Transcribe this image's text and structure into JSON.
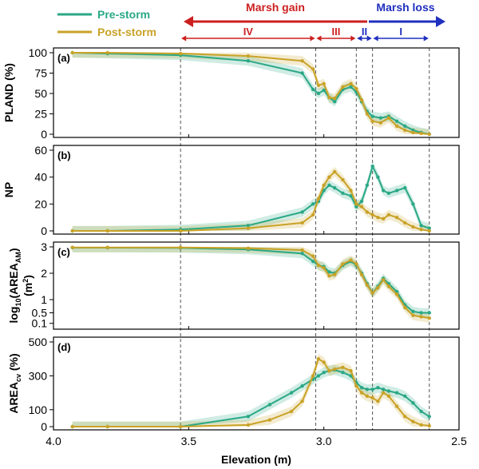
{
  "legend": {
    "items": [
      {
        "label": "Pre-storm",
        "color": "#2aa886"
      },
      {
        "label": "Post-storm",
        "color": "#c9a227"
      }
    ]
  },
  "annotations": {
    "gain_label": "Marsh gain",
    "loss_label": "Marsh loss",
    "gain_color": "#cc1f1f",
    "loss_color": "#1f2fbf",
    "zones": [
      "IV",
      "III",
      "II",
      "I"
    ],
    "zone_boundaries": [
      3.53,
      3.03,
      2.88,
      2.82,
      2.61
    ]
  },
  "xaxis": {
    "label": "Elevation (m)",
    "range": [
      4.0,
      2.5
    ],
    "ticks": [
      "4.0",
      "3.5",
      "3.0",
      "2.5"
    ],
    "tick_values": [
      4.0,
      3.5,
      3.0,
      2.5
    ],
    "direction": "reversed"
  },
  "chart_data": [
    {
      "type": "line",
      "panel": "(a)",
      "ylabel": "PLAND (%)",
      "ylim": [
        0,
        100
      ],
      "yticks": [
        "0",
        "25",
        "50",
        "75",
        "100"
      ],
      "ytick_values": [
        0,
        25,
        50,
        75,
        100
      ],
      "x": [
        3.93,
        3.8,
        3.53,
        3.28,
        3.08,
        3.04,
        3.02,
        3.0,
        2.98,
        2.96,
        2.93,
        2.9,
        2.88,
        2.86,
        2.84,
        2.82,
        2.79,
        2.76,
        2.73,
        2.7,
        2.67,
        2.64,
        2.61
      ],
      "series": [
        {
          "name": "Pre-storm",
          "values": [
            100,
            99,
            97,
            90,
            75,
            55,
            50,
            54,
            45,
            40,
            55,
            58,
            52,
            40,
            28,
            22,
            20,
            22,
            16,
            10,
            5,
            2,
            0
          ]
        },
        {
          "name": "Post-storm",
          "values": [
            100,
            100,
            99,
            96,
            90,
            80,
            60,
            62,
            45,
            44,
            58,
            62,
            56,
            42,
            25,
            16,
            14,
            20,
            10,
            5,
            2,
            1,
            0
          ]
        }
      ]
    },
    {
      "type": "line",
      "panel": "(b)",
      "ylabel": "NP",
      "ylim": [
        0,
        60
      ],
      "yticks": [
        "0",
        "20",
        "40",
        "60"
      ],
      "ytick_values": [
        0,
        20,
        40,
        60
      ],
      "x": [
        3.93,
        3.8,
        3.53,
        3.28,
        3.08,
        3.04,
        3.02,
        3.0,
        2.98,
        2.96,
        2.93,
        2.9,
        2.88,
        2.86,
        2.84,
        2.82,
        2.8,
        2.78,
        2.76,
        2.73,
        2.7,
        2.67,
        2.64,
        2.61
      ],
      "series": [
        {
          "name": "Pre-storm",
          "values": [
            0,
            0,
            1,
            4,
            14,
            20,
            22,
            30,
            34,
            32,
            28,
            26,
            18,
            22,
            34,
            48,
            40,
            30,
            28,
            30,
            32,
            20,
            4,
            2
          ]
        },
        {
          "name": "Post-storm",
          "values": [
            0,
            0,
            0,
            2,
            6,
            12,
            24,
            34,
            40,
            44,
            38,
            30,
            20,
            18,
            14,
            12,
            10,
            9,
            12,
            10,
            6,
            3,
            1,
            0
          ]
        }
      ]
    },
    {
      "type": "line",
      "panel": "(c)",
      "ylabel": "log10(AREA_AM) (m2)",
      "ylim": [
        0,
        3
      ],
      "yticks": [
        "0.1",
        "0.5",
        "1",
        "2",
        "3"
      ],
      "ytick_values": [
        0.1,
        0.5,
        1,
        2,
        3
      ],
      "x": [
        3.93,
        3.8,
        3.53,
        3.28,
        3.08,
        3.04,
        3.02,
        3.0,
        2.98,
        2.96,
        2.93,
        2.9,
        2.88,
        2.86,
        2.84,
        2.82,
        2.8,
        2.78,
        2.76,
        2.73,
        2.7,
        2.67,
        2.64,
        2.61
      ],
      "series": [
        {
          "name": "Pre-storm",
          "values": [
            2.97,
            2.97,
            2.96,
            2.9,
            2.75,
            2.45,
            2.3,
            2.25,
            2.05,
            2.0,
            2.3,
            2.45,
            2.3,
            2.0,
            1.6,
            1.25,
            1.5,
            1.8,
            1.6,
            1.3,
            0.8,
            0.55,
            0.5,
            0.5
          ]
        },
        {
          "name": "Post-storm",
          "values": [
            2.98,
            2.98,
            2.98,
            2.95,
            2.88,
            2.65,
            2.3,
            2.2,
            1.9,
            1.95,
            2.35,
            2.5,
            2.35,
            1.95,
            1.55,
            1.25,
            1.45,
            1.75,
            1.5,
            1.2,
            0.7,
            0.4,
            0.35,
            0.3
          ]
        }
      ]
    },
    {
      "type": "line",
      "panel": "(d)",
      "ylabel": "AREA_cv (%)",
      "ylim": [
        0,
        500
      ],
      "yticks": [
        "0",
        "100",
        "300",
        "500"
      ],
      "ytick_values": [
        0,
        100,
        300,
        500
      ],
      "x": [
        3.93,
        3.8,
        3.53,
        3.28,
        3.2,
        3.12,
        3.08,
        3.04,
        3.02,
        3.0,
        2.98,
        2.96,
        2.93,
        2.9,
        2.88,
        2.86,
        2.84,
        2.82,
        2.8,
        2.78,
        2.76,
        2.73,
        2.7,
        2.67,
        2.64,
        2.61
      ],
      "series": [
        {
          "name": "Pre-storm",
          "values": [
            0,
            0,
            0,
            60,
            130,
            200,
            240,
            280,
            300,
            320,
            330,
            335,
            320,
            300,
            260,
            230,
            220,
            220,
            230,
            220,
            210,
            200,
            180,
            140,
            90,
            60
          ]
        },
        {
          "name": "Post-storm",
          "values": [
            0,
            0,
            0,
            10,
            40,
            90,
            150,
            300,
            400,
            380,
            330,
            340,
            350,
            330,
            240,
            200,
            180,
            170,
            150,
            200,
            180,
            120,
            60,
            30,
            10,
            5
          ]
        }
      ]
    }
  ]
}
